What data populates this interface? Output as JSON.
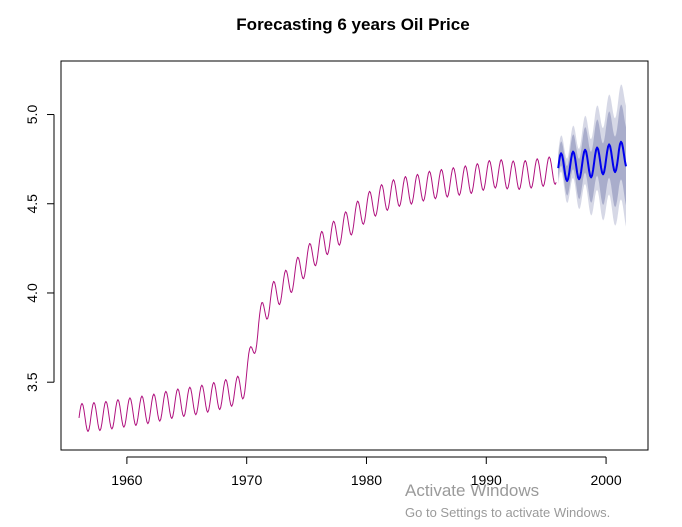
{
  "chart_data": {
    "type": "line",
    "title": "Forecasting 6 years Oil Price",
    "xlabel": "",
    "ylabel": "",
    "xlim": [
      1954.5,
      2003.5
    ],
    "ylim": [
      3.12,
      5.3
    ],
    "x_ticks": [
      1960,
      1970,
      1980,
      1990,
      2000
    ],
    "y_ticks": [
      3.5,
      4.0,
      4.5,
      5.0
    ],
    "x_tick_labels": [
      "1960",
      "1970",
      "1980",
      "1990",
      "2000"
    ],
    "y_tick_labels": [
      "3.5",
      "4.0",
      "4.5",
      "5.0"
    ],
    "frequency": "monthly",
    "seasonal_amplitude": 0.08,
    "series": [
      {
        "role": "history",
        "color": "#b0127f",
        "x": [
          1956.0,
          1958.0,
          1960.0,
          1962.0,
          1964.0,
          1966.0,
          1968.0,
          1969.0,
          1969.6,
          1970.3,
          1971.0,
          1972.0,
          1973.0,
          1974.0,
          1975.0,
          1976.0,
          1977.0,
          1978.0,
          1979.0,
          1980.0,
          1981.0,
          1982.0,
          1983.0,
          1984.0,
          1985.0,
          1986.0,
          1987.0,
          1988.0,
          1989.0,
          1990.0,
          1991.0,
          1992.0,
          1993.0,
          1994.0,
          1995.0,
          1995.9
        ],
        "values": [
          3.3,
          3.31,
          3.33,
          3.35,
          3.38,
          3.4,
          3.43,
          3.45,
          3.46,
          3.62,
          3.83,
          3.97,
          4.03,
          4.1,
          4.18,
          4.25,
          4.31,
          4.36,
          4.42,
          4.48,
          4.52,
          4.55,
          4.57,
          4.58,
          4.6,
          4.61,
          4.62,
          4.63,
          4.64,
          4.66,
          4.67,
          4.66,
          4.66,
          4.67,
          4.68,
          4.69
        ]
      },
      {
        "role": "forecast",
        "color": "#0000ee",
        "x": [
          1996.0,
          1997.0,
          1998.0,
          1999.0,
          2000.0,
          2001.0,
          2001.7
        ],
        "values": [
          4.7,
          4.71,
          4.72,
          4.73,
          4.75,
          4.76,
          4.78
        ]
      }
    ],
    "intervals": [
      {
        "level": 95,
        "color": "#d6d8e6",
        "x": [
          1996.0,
          1998.0,
          2000.0,
          2001.7
        ],
        "half_width": [
          0.09,
          0.18,
          0.27,
          0.34
        ]
      },
      {
        "level": 80,
        "color": "#a9adcb",
        "x": [
          1996.0,
          1998.0,
          2000.0,
          2001.7
        ],
        "half_width": [
          0.06,
          0.12,
          0.18,
          0.22
        ]
      }
    ]
  },
  "watermark": {
    "title": "Activate Windows",
    "subtitle": "Go to Settings to activate Windows."
  }
}
